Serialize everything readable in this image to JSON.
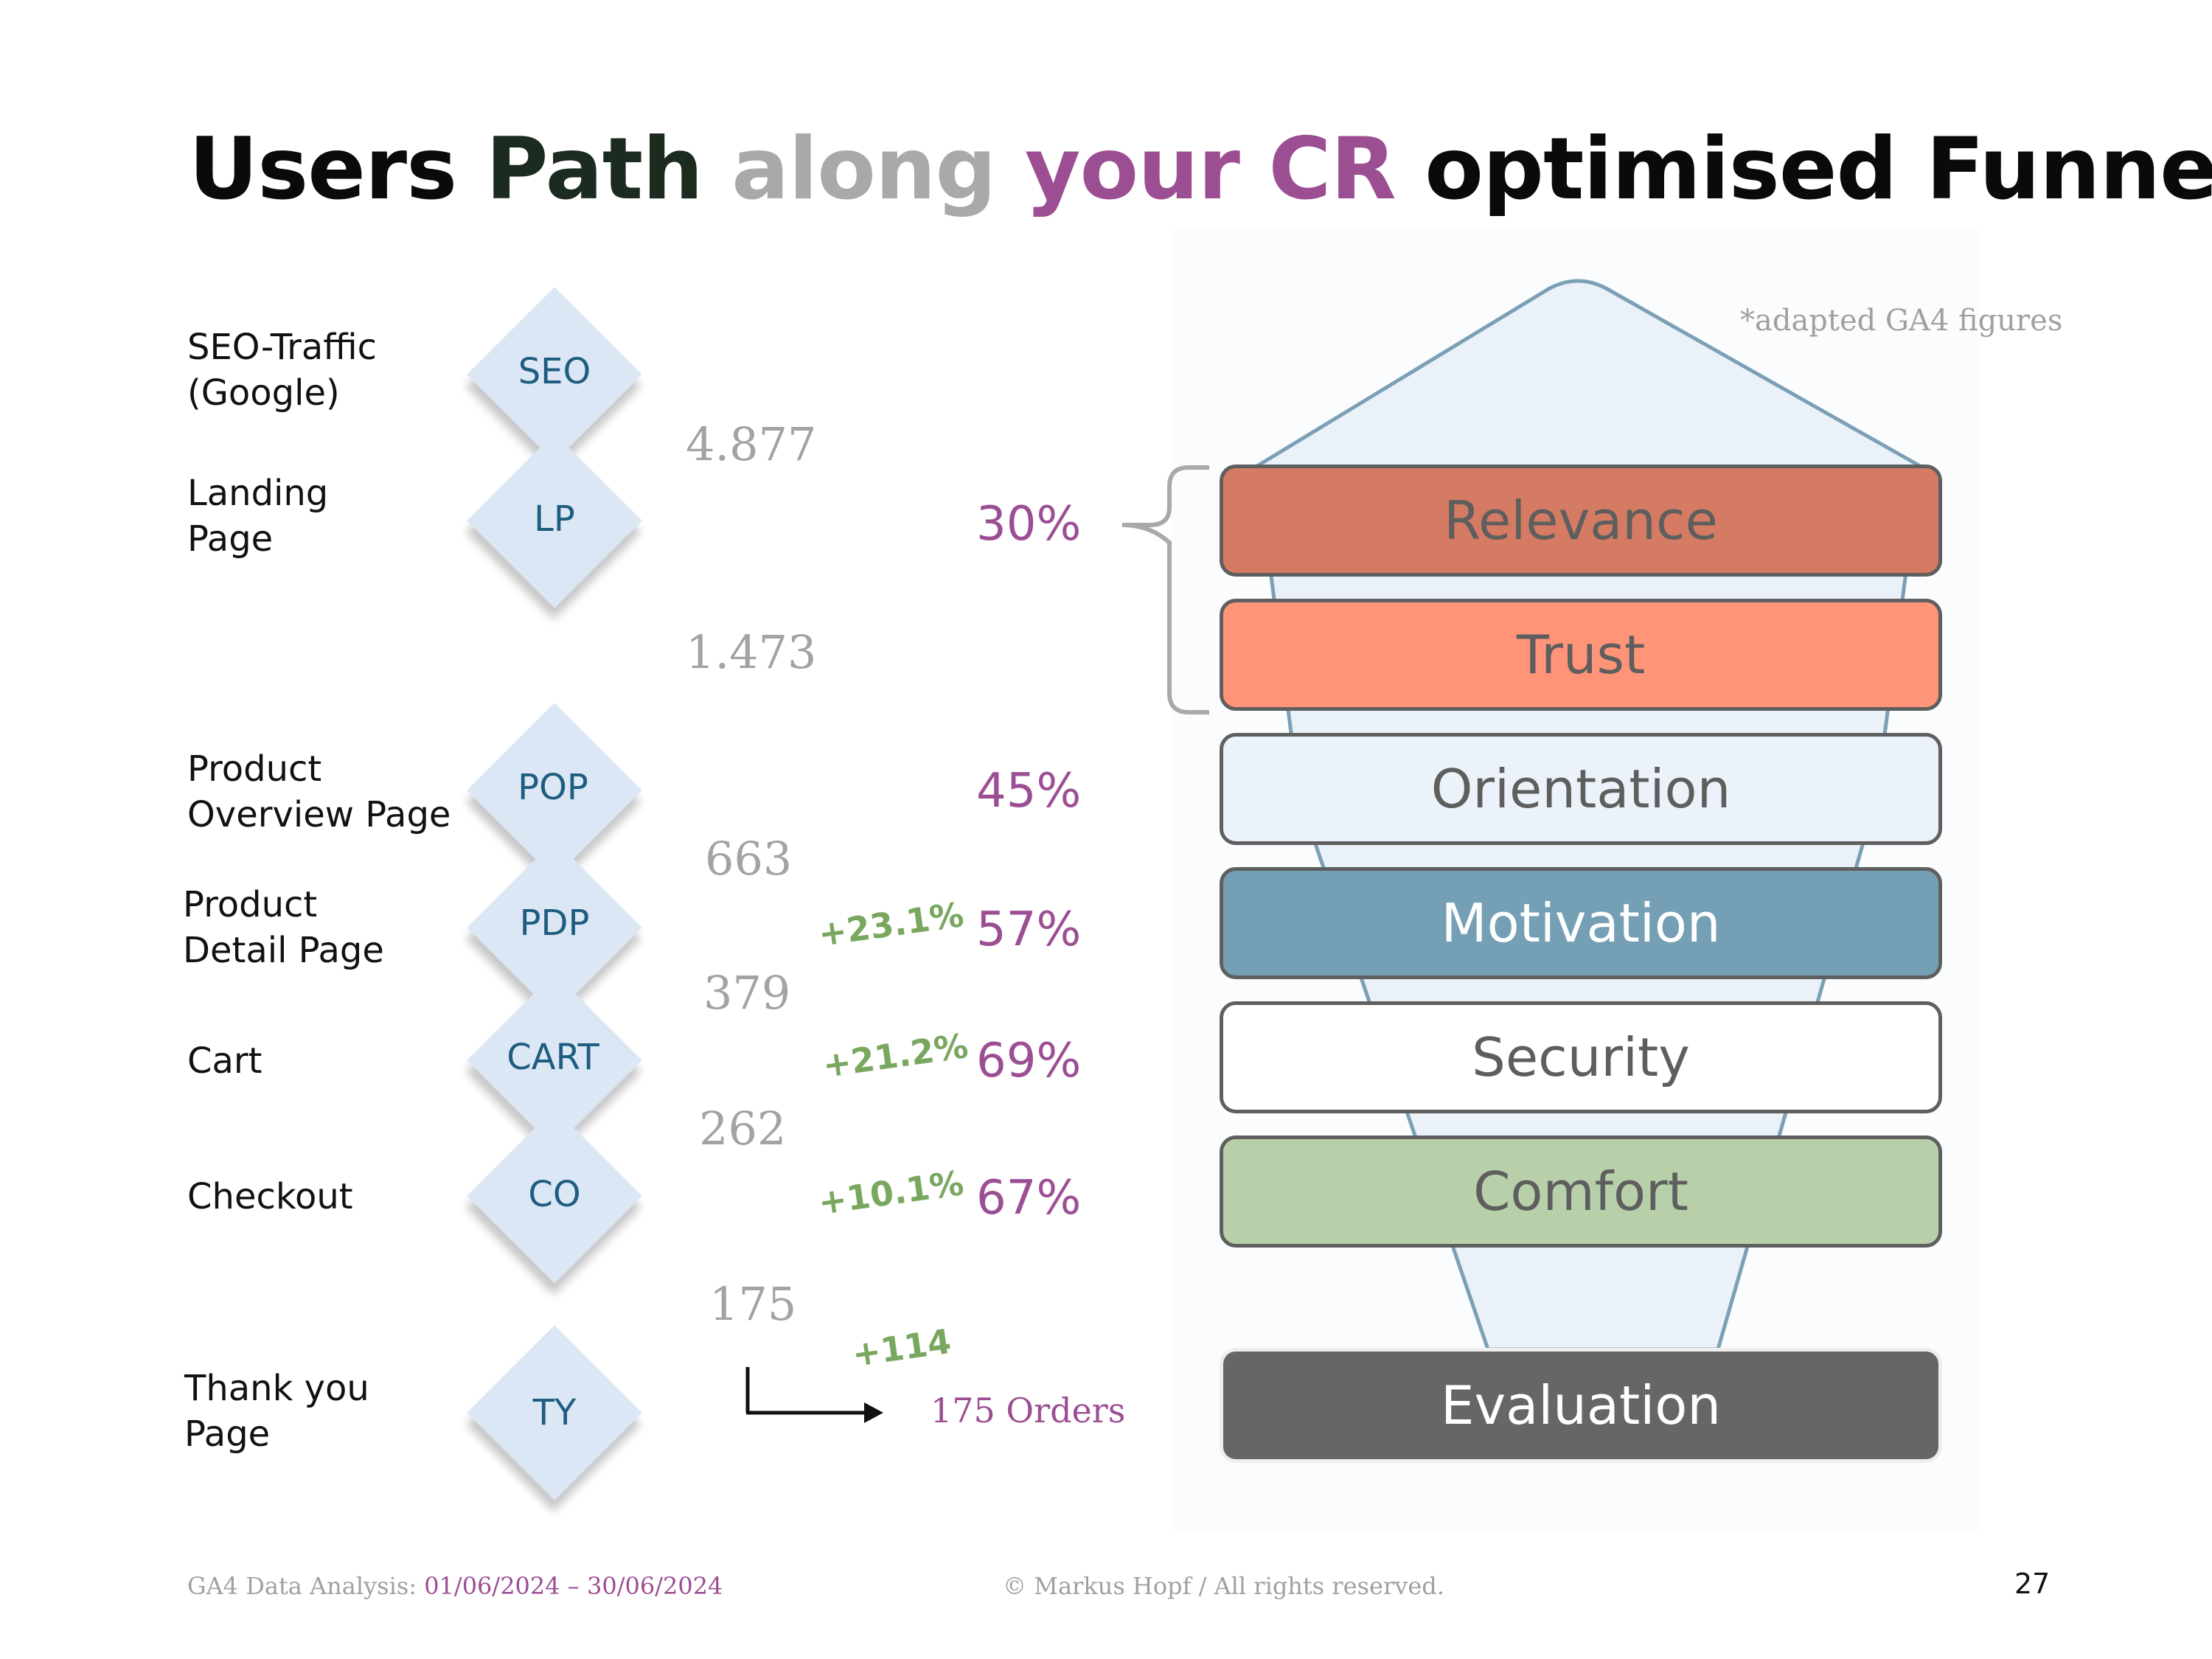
{
  "title": {
    "part1": "Users ",
    "part2": "Path",
    "part3": " along ",
    "part4": "your CR",
    "part5": " optimised Funnel",
    "colors": [
      "#0a0a0a",
      "#1c2b1f",
      "#a9a9a9",
      "#9c4e93",
      "#0a0a0a"
    ]
  },
  "stages": [
    {
      "label_lines": [
        "SEO-Traffic",
        "(Google)"
      ],
      "code": "SEO"
    },
    {
      "label_lines": [
        "Landing",
        "Page"
      ],
      "code": "LP"
    },
    {
      "label_lines": [
        "Product",
        "Overview Page"
      ],
      "code": "POP"
    },
    {
      "label_lines": [
        "Product",
        "Detail Page"
      ],
      "code": "PDP"
    },
    {
      "label_lines": [
        "Cart"
      ],
      "code": "CART"
    },
    {
      "label_lines": [
        "Checkout"
      ],
      "code": "CO"
    },
    {
      "label_lines": [
        "Thank you",
        "Page"
      ],
      "code": "TY"
    }
  ],
  "counts": [
    "4.877",
    "1.473",
    "663",
    "379",
    "262",
    "175"
  ],
  "rates": [
    "30%",
    "45%",
    "57%",
    "69%",
    "67%"
  ],
  "lifts": [
    "+23.1%",
    "+21.2%",
    "+10.1%",
    "+114"
  ],
  "orders_label": "175 Orders",
  "note": "*adapted GA4 figures",
  "funnel_boxes": [
    {
      "label": "Relevance",
      "fill": "#d57b64",
      "text_color": "#5e5e5e"
    },
    {
      "label": "Trust",
      "fill": "#ff9478",
      "text_color": "#5e5e5e"
    },
    {
      "label": "Orientation",
      "fill": "#ebf2fa",
      "text_color": "#5e5e5e"
    },
    {
      "label": "Motivation",
      "fill": "#749fb5",
      "text_color": "#ffffff"
    },
    {
      "label": "Security",
      "fill": "#ffffff",
      "text_color": "#5e5e5e"
    },
    {
      "label": "Comfort",
      "fill": "#b8d0aa",
      "text_color": "#5e5e5e"
    },
    {
      "label": "Evaluation",
      "fill": "#666666",
      "text_color": "#ffffff"
    }
  ],
  "footer": {
    "analysis_label": "GA4 Data Analysis: ",
    "analysis_range": "01/06/2024 – 30/06/2024",
    "copyright": "© Markus Hopf / All rights reserved.",
    "page_number": "27"
  }
}
